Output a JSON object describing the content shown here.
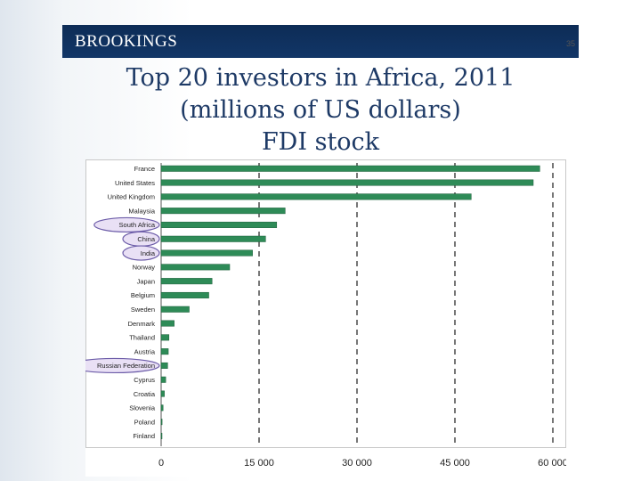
{
  "header": {
    "brand": "BROOKINGS",
    "slide_number": "35"
  },
  "title": {
    "line1": "Top 20 investors in Africa, 2011",
    "line2": "(millions of US dollars)",
    "line3": "FDI stock"
  },
  "colors": {
    "header": "#0f2f5c",
    "title": "#1e3a66",
    "bar": "#2e8b57",
    "highlight_fill": "#e9e0f5",
    "highlight_stroke": "#6c5ca8"
  },
  "chart_data": {
    "type": "bar",
    "orientation": "horizontal",
    "categories": [
      "France",
      "United States",
      "United Kingdom",
      "Malaysia",
      "South Africa",
      "China",
      "India",
      "Norway",
      "Japan",
      "Belgium",
      "Sweden",
      "Denmark",
      "Thailand",
      "Austria",
      "Russian Federation",
      "Cyprus",
      "Croatia",
      "Slovenia",
      "Poland",
      "Finland"
    ],
    "values": [
      58000,
      57000,
      47500,
      19000,
      17700,
      16000,
      14000,
      10500,
      7800,
      7300,
      4300,
      2000,
      1200,
      1100,
      1000,
      700,
      500,
      300,
      150,
      100
    ],
    "highlighted": [
      "South Africa",
      "China",
      "India",
      "Russian Federation"
    ],
    "xticks": [
      "0",
      "15 000",
      "30 000",
      "45 000",
      "60 000"
    ],
    "xlim": [
      0,
      60000
    ],
    "grid": "vertical dashed"
  }
}
